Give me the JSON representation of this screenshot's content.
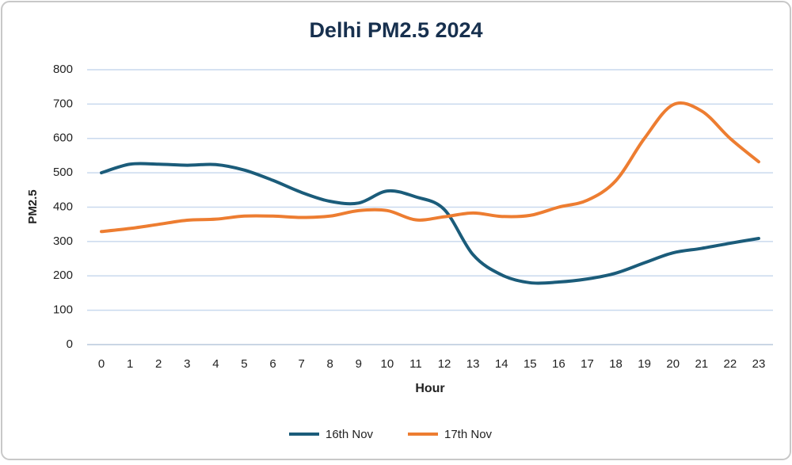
{
  "chart_data": {
    "type": "line",
    "title": "Delhi PM2.5 2024",
    "x_label": "Hour",
    "y_label": "PM2.5",
    "x": [
      0,
      1,
      2,
      3,
      4,
      5,
      6,
      7,
      8,
      9,
      10,
      11,
      12,
      13,
      14,
      15,
      16,
      17,
      18,
      19,
      20,
      21,
      22,
      23
    ],
    "xlim": [
      -0.5,
      23.5
    ],
    "xticks": [
      0,
      1,
      2,
      3,
      4,
      5,
      6,
      7,
      8,
      9,
      10,
      11,
      12,
      13,
      14,
      15,
      16,
      17,
      18,
      19,
      20,
      21,
      22,
      23
    ],
    "ylim": [
      0,
      800
    ],
    "yticks": [
      0,
      100,
      200,
      300,
      400,
      500,
      600,
      700,
      800
    ],
    "grid": true,
    "legend": "bottom",
    "series": [
      {
        "name": "16th Nov",
        "color": "#1b5c7a",
        "values": [
          500,
          525,
          525,
          522,
          524,
          508,
          478,
          443,
          417,
          412,
          447,
          430,
          393,
          262,
          203,
          180,
          182,
          191,
          208,
          238,
          267,
          280,
          295,
          309
        ]
      },
      {
        "name": "17th Nov",
        "color": "#ed7d31",
        "values": [
          329,
          338,
          350,
          362,
          365,
          374,
          374,
          370,
          374,
          390,
          390,
          363,
          372,
          383,
          373,
          376,
          400,
          420,
          477,
          600,
          698,
          680,
          600,
          532
        ]
      }
    ]
  }
}
